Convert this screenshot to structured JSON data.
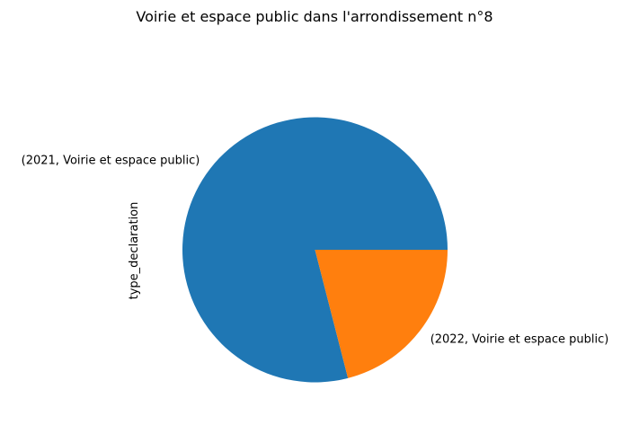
{
  "chart_data": {
    "type": "pie",
    "title": "Voirie et espace public dans l'arrondissement n°8",
    "ylabel": "type_declaration",
    "labels": [
      "(2021, Voirie et espace public)",
      "(2022, Voirie et espace public)"
    ],
    "values": [
      79,
      21
    ],
    "colors": [
      "#1f77b4",
      "#ff7f0e"
    ],
    "start_angle_deg": 0,
    "direction": "counterclockwise"
  }
}
